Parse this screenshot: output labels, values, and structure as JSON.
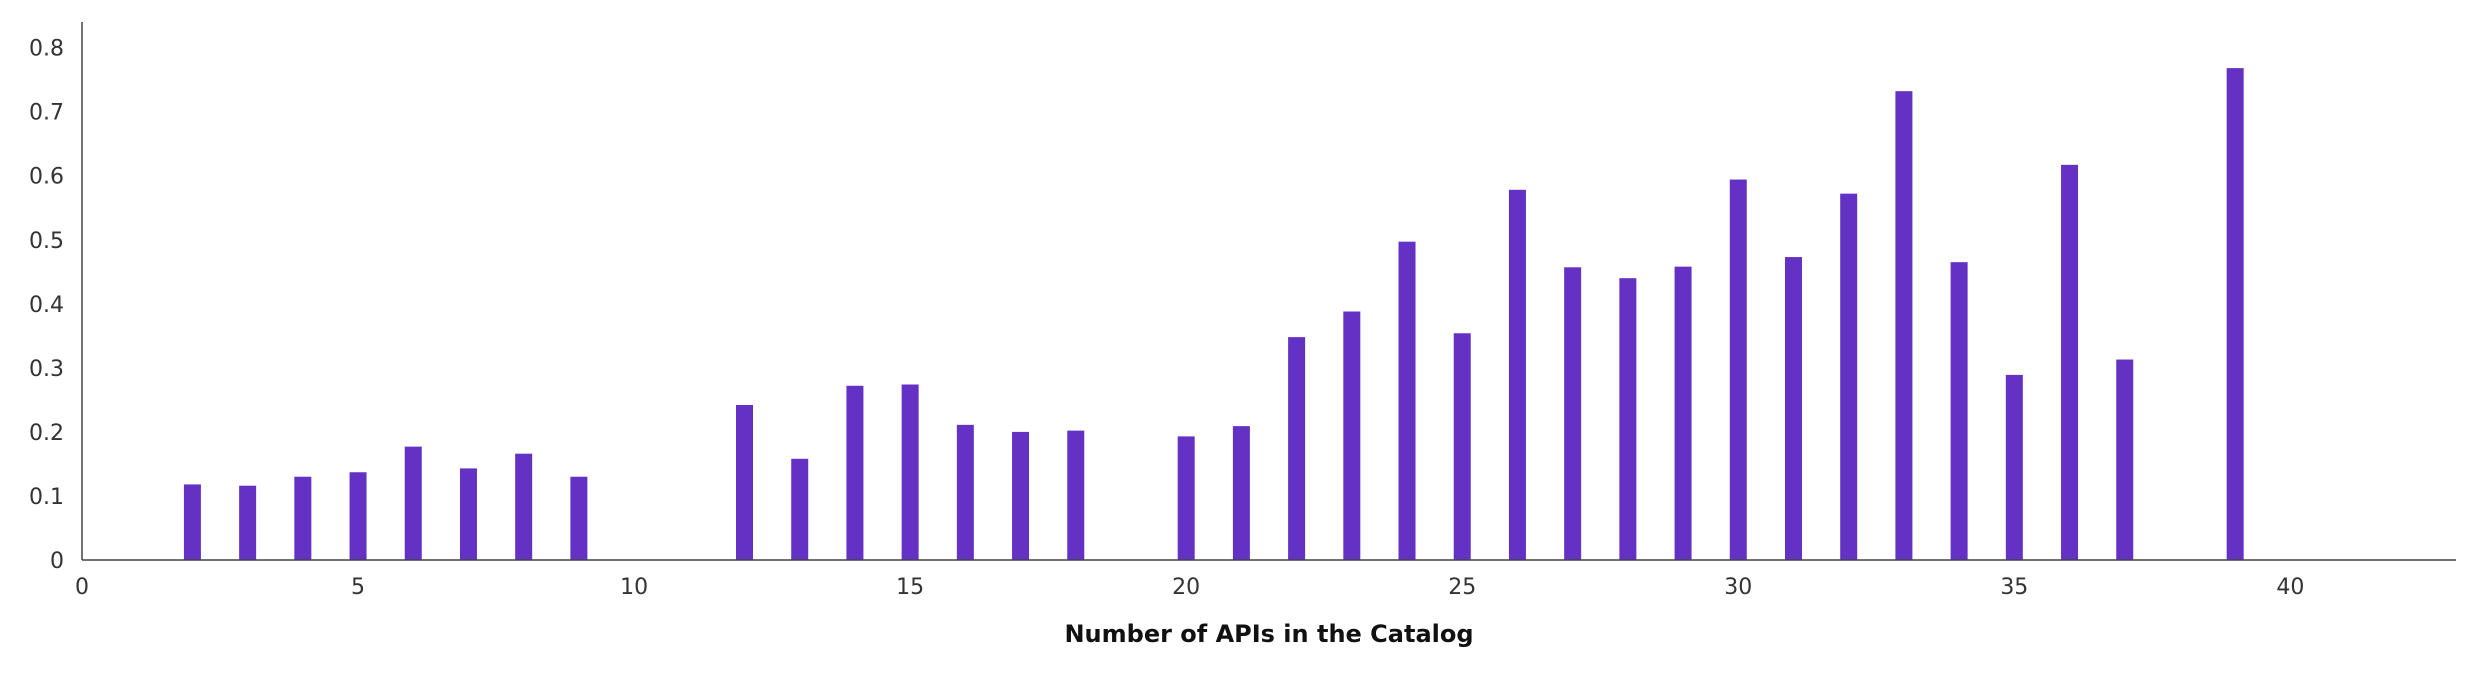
{
  "chart_data": {
    "type": "bar",
    "xlabel": "Number of APIs in the Catalog",
    "ylabel": "",
    "xlim": [
      0,
      43
    ],
    "ylim": [
      0,
      0.84
    ],
    "x_ticks": [
      0,
      5,
      10,
      15,
      20,
      25,
      30,
      35,
      40
    ],
    "y_ticks": [
      0,
      0.1,
      0.2,
      0.3,
      0.4,
      0.5,
      0.6,
      0.7,
      0.8
    ],
    "x_tick_labels": [
      "0",
      "5",
      "10",
      "15",
      "20",
      "25",
      "30",
      "35",
      "40"
    ],
    "y_tick_labels": [
      "0",
      "0.1",
      "0.2",
      "0.3",
      "0.4",
      "0.5",
      "0.6",
      "0.7",
      "0.8"
    ],
    "grid": false,
    "bar_color": "#6331c4",
    "x": [
      2,
      3,
      4,
      5,
      6,
      7,
      8,
      9,
      12,
      13,
      14,
      15,
      16,
      17,
      18,
      20,
      21,
      22,
      23,
      24,
      25,
      26,
      27,
      28,
      29,
      30,
      31,
      32,
      33,
      34,
      35,
      36,
      37,
      39
    ],
    "values": [
      0.118,
      0.116,
      0.13,
      0.137,
      0.177,
      0.143,
      0.166,
      0.13,
      0.242,
      0.158,
      0.272,
      0.274,
      0.211,
      0.2,
      0.202,
      0.193,
      0.209,
      0.348,
      0.388,
      0.497,
      0.354,
      0.578,
      0.457,
      0.44,
      0.458,
      0.594,
      0.473,
      0.572,
      0.732,
      0.465,
      0.289,
      0.617,
      0.313,
      0.768
    ]
  }
}
